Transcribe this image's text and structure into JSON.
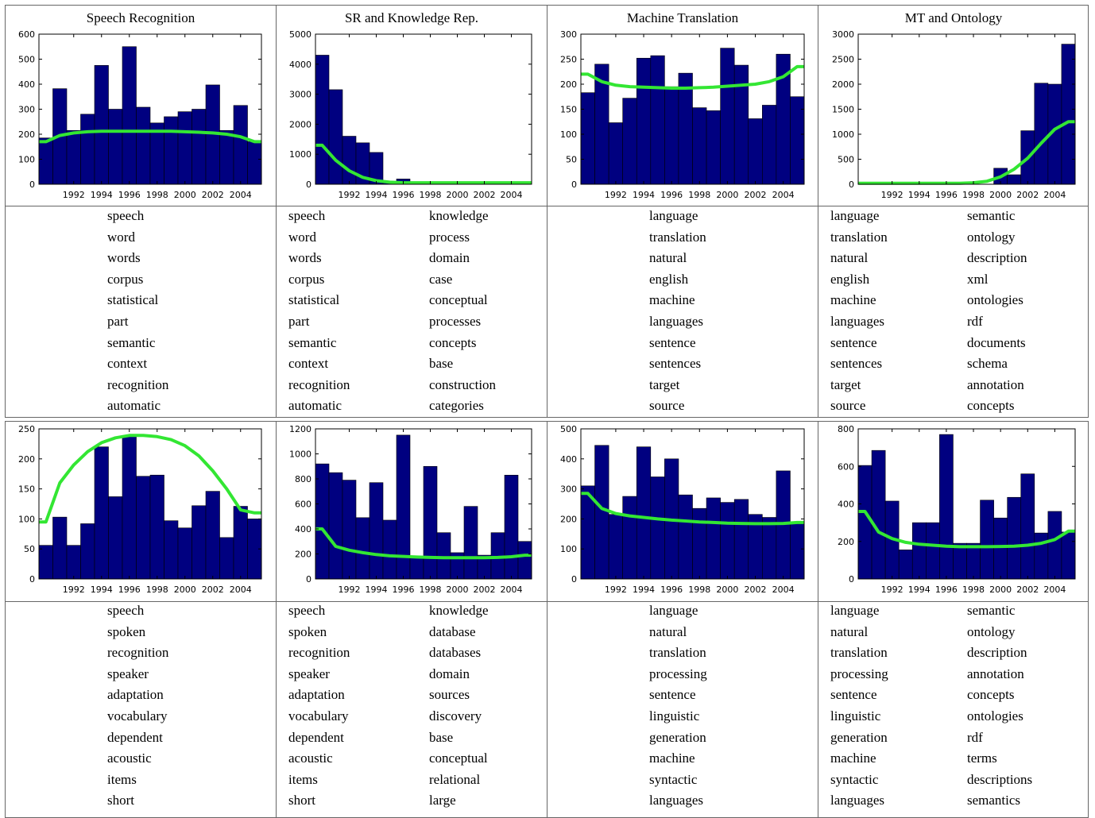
{
  "panels_top_titles": [
    "Speech Recognition",
    "SR and Knowledge Rep.",
    "Machine Translation",
    "MT and Ontology"
  ],
  "colors": {
    "bar": "#000080",
    "trend": "#33e633"
  },
  "chart_data": [
    {
      "type": "bar",
      "title": "Speech Recognition",
      "x": [
        1990,
        1991,
        1992,
        1993,
        1994,
        1995,
        1996,
        1997,
        1998,
        1999,
        2000,
        2001,
        2002,
        2003,
        2004,
        2005
      ],
      "values": [
        185,
        382,
        215,
        280,
        475,
        300,
        550,
        308,
        245,
        270,
        290,
        300,
        397,
        215,
        315,
        170
      ],
      "trend": [
        170,
        195,
        205,
        210,
        212,
        212,
        212,
        212,
        212,
        212,
        210,
        208,
        205,
        200,
        190,
        170
      ],
      "ylim": [
        0,
        600
      ],
      "yticks": [
        0,
        100,
        200,
        300,
        400,
        500,
        600
      ],
      "xticks": [
        1992,
        1994,
        1996,
        1998,
        2000,
        2002,
        2004
      ]
    },
    {
      "type": "bar",
      "title": "SR and Knowledge Rep.",
      "x": [
        1990,
        1991,
        1992,
        1993,
        1994,
        1995,
        1996,
        1997,
        1998,
        1999,
        2000,
        2001,
        2002,
        2003,
        2004,
        2005
      ],
      "values": [
        4300,
        3150,
        1600,
        1380,
        1060,
        100,
        175,
        80,
        30,
        20,
        20,
        20,
        20,
        20,
        20,
        20
      ],
      "trend": [
        1300,
        800,
        450,
        230,
        120,
        70,
        50,
        50,
        50,
        50,
        50,
        50,
        50,
        50,
        50,
        50
      ],
      "ylim": [
        0,
        5000
      ],
      "yticks": [
        0,
        1000,
        2000,
        3000,
        4000,
        5000
      ],
      "xticks": [
        1992,
        1994,
        1996,
        1998,
        2000,
        2002,
        2004
      ]
    },
    {
      "type": "bar",
      "title": "Machine Translation",
      "x": [
        1990,
        1991,
        1992,
        1993,
        1994,
        1995,
        1996,
        1997,
        1998,
        1999,
        2000,
        2001,
        2002,
        2003,
        2004,
        2005
      ],
      "values": [
        183,
        240,
        123,
        172,
        252,
        257,
        195,
        222,
        153,
        147,
        272,
        238,
        131,
        158,
        260,
        175
      ],
      "trend": [
        220,
        205,
        198,
        195,
        194,
        193,
        192,
        192,
        193,
        194,
        196,
        198,
        200,
        205,
        215,
        235
      ],
      "ylim": [
        0,
        300
      ],
      "yticks": [
        0,
        50,
        100,
        150,
        200,
        250,
        300
      ],
      "xticks": [
        1992,
        1994,
        1996,
        1998,
        2000,
        2002,
        2004
      ]
    },
    {
      "type": "bar",
      "title": "MT and Ontology",
      "x": [
        1990,
        1991,
        1992,
        1993,
        1994,
        1995,
        1996,
        1997,
        1998,
        1999,
        2000,
        2001,
        2002,
        2003,
        2004,
        2005
      ],
      "values": [
        0,
        0,
        0,
        0,
        0,
        0,
        0,
        0,
        0,
        0,
        320,
        190,
        1070,
        2020,
        2000,
        2800
      ],
      "trend": [
        20,
        20,
        20,
        20,
        20,
        20,
        20,
        20,
        30,
        60,
        150,
        300,
        520,
        820,
        1100,
        1250
      ],
      "ylim": [
        0,
        3000
      ],
      "yticks": [
        0,
        500,
        1000,
        1500,
        2000,
        2500,
        3000
      ],
      "xticks": [
        1992,
        1994,
        1996,
        1998,
        2000,
        2002,
        2004
      ]
    },
    {
      "type": "bar",
      "title": "",
      "x": [
        1990,
        1991,
        1992,
        1993,
        1994,
        1995,
        1996,
        1997,
        1998,
        1999,
        2000,
        2001,
        2002,
        2003,
        2004,
        2005
      ],
      "values": [
        56,
        103,
        56,
        92,
        220,
        137,
        238,
        171,
        173,
        97,
        85,
        122,
        146,
        69,
        121,
        100
      ],
      "trend": [
        95,
        160,
        190,
        212,
        227,
        235,
        239,
        239,
        237,
        232,
        222,
        205,
        180,
        150,
        115,
        110
      ],
      "ylim": [
        0,
        250
      ],
      "yticks": [
        0,
        50,
        100,
        150,
        200,
        250
      ],
      "xticks": [
        1992,
        1994,
        1996,
        1998,
        2000,
        2002,
        2004
      ]
    },
    {
      "type": "bar",
      "title": "",
      "x": [
        1990,
        1991,
        1992,
        1993,
        1994,
        1995,
        1996,
        1997,
        1998,
        1999,
        2000,
        2001,
        2002,
        2003,
        2004,
        2005
      ],
      "values": [
        920,
        850,
        790,
        490,
        770,
        470,
        1150,
        180,
        900,
        370,
        210,
        580,
        190,
        370,
        830,
        300
      ],
      "trend": [
        400,
        260,
        230,
        210,
        195,
        185,
        180,
        175,
        172,
        170,
        170,
        170,
        170,
        172,
        178,
        190
      ],
      "ylim": [
        0,
        1200
      ],
      "yticks": [
        0,
        200,
        400,
        600,
        800,
        1000,
        1200
      ],
      "xticks": [
        1992,
        1994,
        1996,
        1998,
        2000,
        2002,
        2004
      ]
    },
    {
      "type": "bar",
      "title": "",
      "x": [
        1990,
        1991,
        1992,
        1993,
        1994,
        1995,
        1996,
        1997,
        1998,
        1999,
        2000,
        2001,
        2002,
        2003,
        2004,
        2005
      ],
      "values": [
        310,
        445,
        215,
        275,
        440,
        340,
        400,
        280,
        235,
        270,
        255,
        265,
        215,
        205,
        360,
        190
      ],
      "trend": [
        285,
        235,
        218,
        210,
        205,
        200,
        196,
        193,
        190,
        188,
        186,
        185,
        184,
        184,
        185,
        188
      ],
      "ylim": [
        0,
        500
      ],
      "yticks": [
        0,
        100,
        200,
        300,
        400,
        500
      ],
      "xticks": [
        1992,
        1994,
        1996,
        1998,
        2000,
        2002,
        2004
      ]
    },
    {
      "type": "bar",
      "title": "",
      "x": [
        1990,
        1991,
        1992,
        1993,
        1994,
        1995,
        1996,
        1997,
        1998,
        1999,
        2000,
        2001,
        2002,
        2003,
        2004,
        2005
      ],
      "values": [
        605,
        685,
        415,
        155,
        300,
        300,
        770,
        190,
        190,
        420,
        325,
        435,
        560,
        245,
        360,
        250
      ],
      "trend": [
        360,
        250,
        215,
        195,
        185,
        180,
        175,
        172,
        172,
        172,
        173,
        175,
        180,
        190,
        210,
        255
      ],
      "ylim": [
        0,
        800
      ],
      "yticks": [
        0,
        200,
        400,
        600,
        800
      ],
      "xticks": [
        1992,
        1994,
        1996,
        1998,
        2000,
        2002,
        2004
      ]
    }
  ],
  "words": {
    "top": [
      [
        "speech",
        "word",
        "words",
        "corpus",
        "statistical",
        "part",
        "semantic",
        "context",
        "recognition",
        "automatic"
      ],
      [
        "speech",
        "word",
        "words",
        "corpus",
        "statistical",
        "part",
        "semantic",
        "context",
        "recognition",
        "automatic"
      ],
      [
        "knowledge",
        "process",
        "domain",
        "case",
        "conceptual",
        "processes",
        "concepts",
        "base",
        "construction",
        "categories"
      ],
      [
        "language",
        "translation",
        "natural",
        "english",
        "machine",
        "languages",
        "sentence",
        "sentences",
        "target",
        "source"
      ],
      [
        "language",
        "translation",
        "natural",
        "english",
        "machine",
        "languages",
        "sentence",
        "sentences",
        "target",
        "source"
      ],
      [
        "semantic",
        "ontology",
        "description",
        "xml",
        "ontologies",
        "rdf",
        "documents",
        "schema",
        "annotation",
        "concepts"
      ]
    ],
    "bottom": [
      [
        "speech",
        "spoken",
        "recognition",
        "speaker",
        "adaptation",
        "vocabulary",
        "dependent",
        "acoustic",
        "items",
        "short"
      ],
      [
        "speech",
        "spoken",
        "recognition",
        "speaker",
        "adaptation",
        "vocabulary",
        "dependent",
        "acoustic",
        "items",
        "short"
      ],
      [
        "knowledge",
        "database",
        "databases",
        "domain",
        "sources",
        "discovery",
        "base",
        "conceptual",
        "relational",
        "large"
      ],
      [
        "language",
        "natural",
        "translation",
        "processing",
        "sentence",
        "linguistic",
        "generation",
        "machine",
        "syntactic",
        "languages"
      ],
      [
        "language",
        "natural",
        "translation",
        "processing",
        "sentence",
        "linguistic",
        "generation",
        "machine",
        "syntactic",
        "languages"
      ],
      [
        "semantic",
        "ontology",
        "description",
        "annotation",
        "concepts",
        "ontologies",
        "rdf",
        "terms",
        "descriptions",
        "semantics"
      ]
    ]
  }
}
